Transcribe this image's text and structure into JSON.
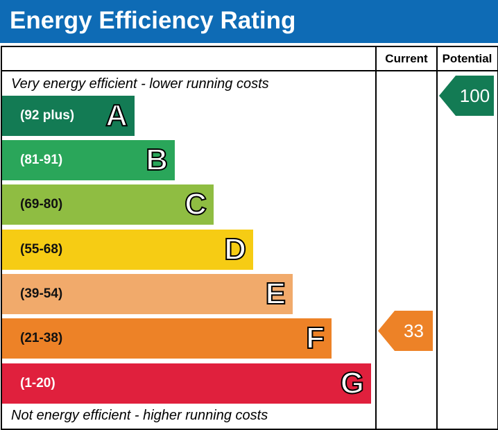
{
  "title": "Energy Efficiency Rating",
  "columns": {
    "current": "Current",
    "potential": "Potential"
  },
  "top_caption": "Very energy efficient - lower running costs",
  "bottom_caption": "Not energy efficient - higher running costs",
  "chart_data": {
    "type": "bar",
    "title": "Energy Efficiency Rating",
    "bands": [
      {
        "letter": "A",
        "range": "(92 plus)",
        "color": "#137b54"
      },
      {
        "letter": "B",
        "range": "(81-91)",
        "color": "#2aa65a"
      },
      {
        "letter": "C",
        "range": "(69-80)",
        "color": "#8fbd42"
      },
      {
        "letter": "D",
        "range": "(55-68)",
        "color": "#f6cc14"
      },
      {
        "letter": "E",
        "range": "(39-54)",
        "color": "#f1aa6b"
      },
      {
        "letter": "F",
        "range": "(21-38)",
        "color": "#ed8227"
      },
      {
        "letter": "G",
        "range": "(1-20)",
        "color": "#e0203d"
      }
    ],
    "current": {
      "value": "33",
      "band": "F",
      "color": "#ed8227"
    },
    "potential": {
      "value": "100",
      "band": "A",
      "color": "#137b54"
    }
  }
}
